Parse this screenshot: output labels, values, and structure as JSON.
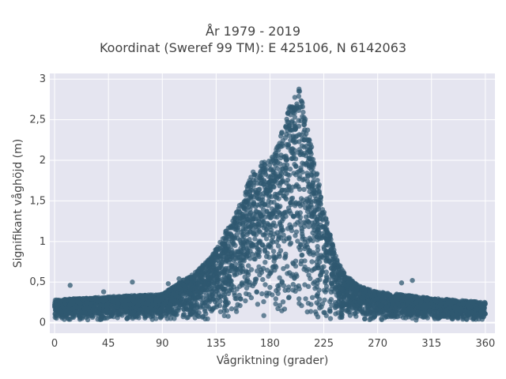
{
  "chart_data": {
    "type": "scatter",
    "title_line1": "År 1979 - 2019",
    "title_line2": "Koordinat (Sweref 99 TM): E 425106, N 6142063",
    "xlabel": "Vågriktning (grader)",
    "ylabel": "Signifikant våghöjd (m)",
    "xlim": [
      -4,
      368
    ],
    "ylim": [
      -0.13,
      3.07
    ],
    "x_ticks": [
      0,
      45,
      90,
      135,
      180,
      225,
      270,
      315,
      360
    ],
    "x_tick_labels": [
      "0",
      "45",
      "90",
      "135",
      "180",
      "225",
      "270",
      "315",
      "360"
    ],
    "y_ticks": [
      0,
      0.5,
      1,
      1.5,
      2,
      2.5,
      3
    ],
    "y_tick_labels": [
      "0",
      "0,5",
      "1",
      "1,5",
      "2",
      "2,5",
      "3"
    ],
    "grid": true,
    "marker_color": "#2f5870",
    "background_color": "#e5e5f0",
    "envelope": {
      "direction": [
        0,
        45,
        90,
        100,
        110,
        120,
        130,
        140,
        150,
        160,
        165,
        170,
        175,
        180,
        185,
        190,
        195,
        200,
        205,
        210,
        215,
        220,
        225,
        230,
        235,
        240,
        250,
        260,
        270,
        315,
        360
      ],
      "max_height": [
        0.28,
        0.32,
        0.35,
        0.45,
        0.55,
        0.65,
        0.8,
        1.05,
        1.3,
        1.65,
        1.85,
        1.92,
        2.0,
        2.0,
        2.12,
        2.35,
        2.6,
        2.82,
        2.9,
        2.5,
        2.15,
        1.8,
        1.4,
        1.1,
        0.85,
        0.65,
        0.5,
        0.42,
        0.38,
        0.3,
        0.25
      ]
    },
    "outliers": [
      {
        "x": 13,
        "y": 0.46
      },
      {
        "x": 41,
        "y": 0.38
      },
      {
        "x": 65,
        "y": 0.5
      },
      {
        "x": 95,
        "y": 0.48
      },
      {
        "x": 104,
        "y": 0.54
      },
      {
        "x": 290,
        "y": 0.49
      },
      {
        "x": 299,
        "y": 0.52
      }
    ]
  }
}
